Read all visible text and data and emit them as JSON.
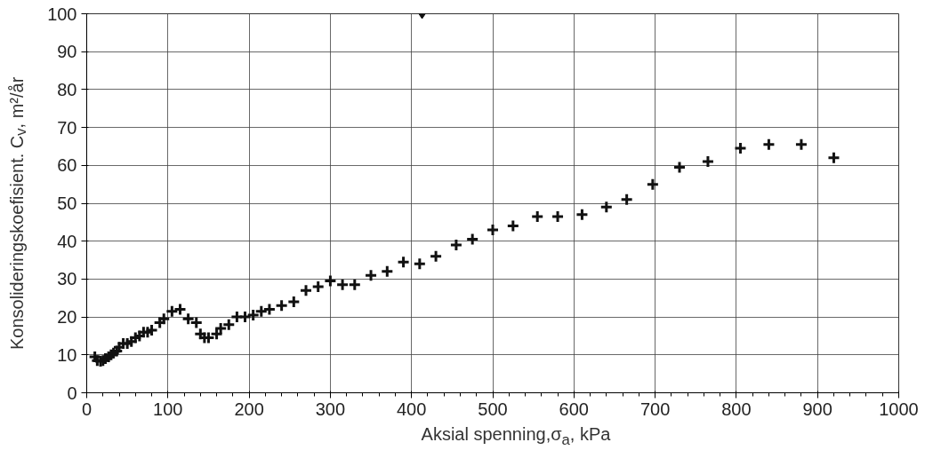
{
  "chart_data": {
    "type": "scatter",
    "xlabel": "Aksial spenning,σ$_{a}$, kPa",
    "ylabel": "Konsolideringskoefisient. C$_{v}$, m²/år",
    "xlim": [
      0,
      1000
    ],
    "xticks": [
      0,
      100,
      200,
      300,
      400,
      500,
      600,
      700,
      800,
      900,
      1000
    ],
    "ylim": [
      0,
      100
    ],
    "yticks": [
      0,
      10,
      20,
      30,
      40,
      50,
      60,
      70,
      80,
      90,
      100
    ],
    "grid": true,
    "marker": "cross",
    "series": [
      {
        "color": "#111111",
        "x": [
          10,
          13,
          17,
          20,
          23,
          27,
          30,
          33,
          37,
          40,
          45,
          50,
          55,
          60,
          65,
          70,
          75,
          80,
          90,
          95,
          105,
          115,
          125,
          135,
          140,
          145,
          150,
          160,
          165,
          175,
          185,
          195,
          205,
          215,
          225,
          240,
          255,
          270,
          285,
          300,
          315,
          330,
          350,
          370,
          390,
          410,
          430,
          455,
          475,
          500,
          525,
          555,
          580,
          610,
          640,
          665,
          697,
          730,
          765,
          805,
          840,
          880,
          920
        ],
        "values": [
          9.5,
          8.5,
          8.3,
          8.5,
          9,
          9.5,
          10,
          10.5,
          11,
          12,
          13,
          13,
          13.5,
          14.5,
          15,
          16,
          16,
          16.5,
          18.5,
          19.5,
          21.5,
          22,
          19.5,
          18.5,
          15.5,
          14.5,
          14.5,
          15.5,
          17,
          18,
          20,
          20,
          20.5,
          21.5,
          22,
          23,
          24,
          27,
          28,
          29.5,
          28.5,
          28.5,
          31,
          32,
          34.5,
          34,
          36,
          39,
          40.5,
          43,
          44,
          46.5,
          46.5,
          47,
          49,
          51,
          55,
          59.5,
          61,
          64.5,
          65.5,
          65.5,
          62
        ]
      },
      {
        "color": "#111111",
        "marker": "diamond",
        "x": [
          413
        ],
        "values": [
          100
        ]
      }
    ]
  }
}
